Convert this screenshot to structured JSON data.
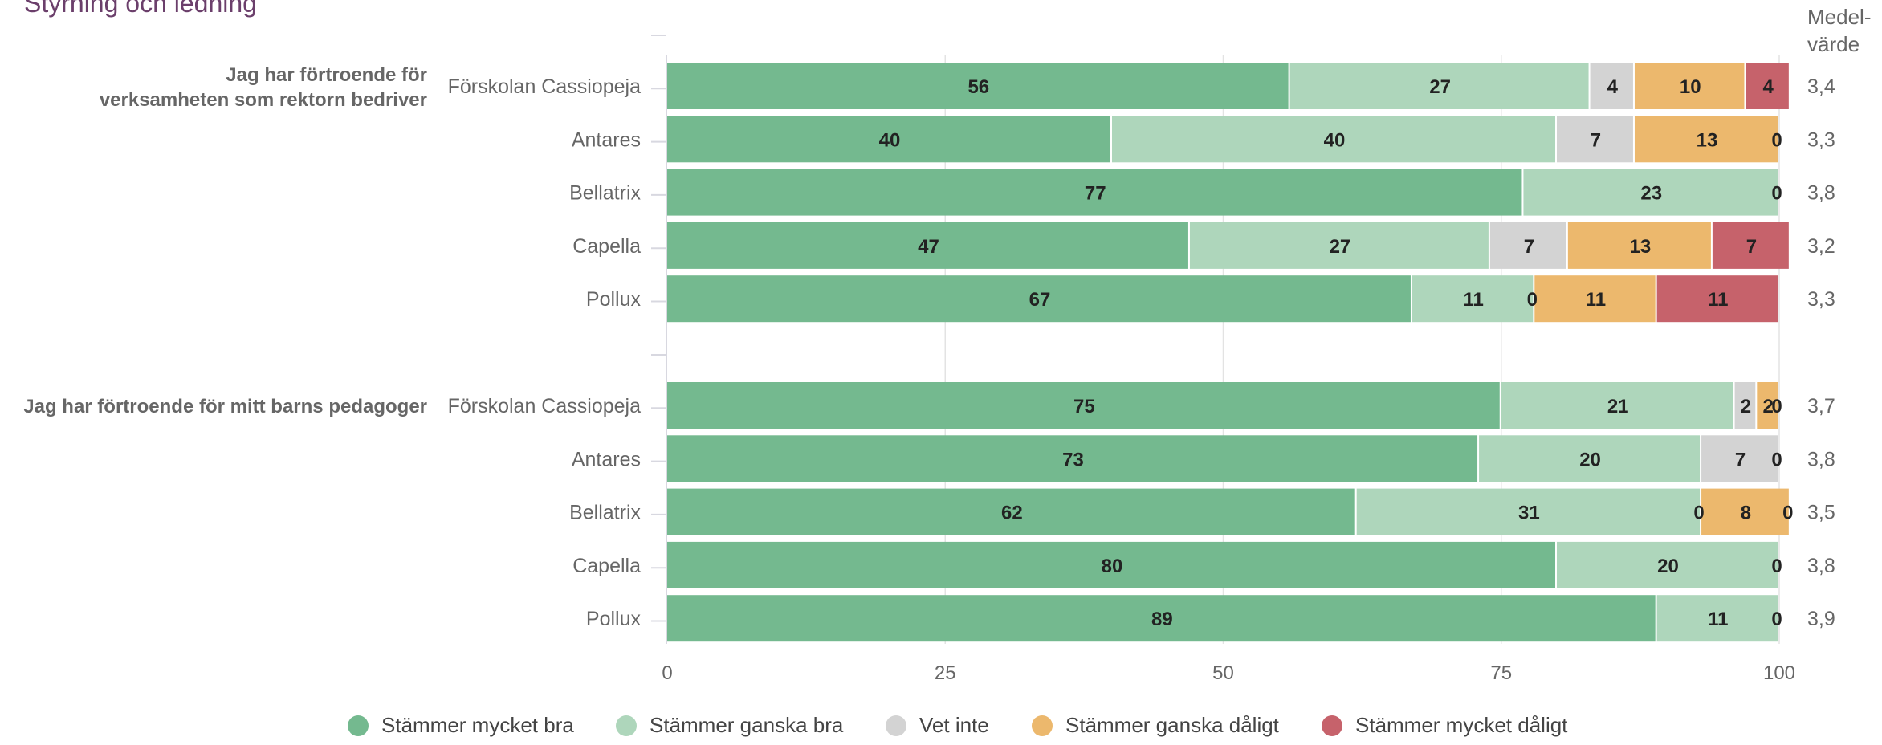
{
  "page": {
    "title": "Styrning och ledning",
    "mean_header_line1": "Medel-",
    "mean_header_line2": "värde"
  },
  "legend": [
    {
      "label": "Stämmer mycket bra",
      "color": "#74b98f"
    },
    {
      "label": "Stämmer ganska bra",
      "color": "#aed6bb"
    },
    {
      "label": "Vet inte",
      "color": "#d3d3d3"
    },
    {
      "label": "Stämmer ganska dåligt",
      "color": "#ecb86d"
    },
    {
      "label": "Stämmer mycket dåligt",
      "color": "#c6626b"
    }
  ],
  "chart_data": {
    "type": "bar",
    "orientation": "horizontal",
    "stacked": true,
    "xlim": [
      0,
      100
    ],
    "xticks": [
      0,
      25,
      50,
      75,
      100
    ],
    "grid": true,
    "legend_position": "bottom",
    "series_names": [
      "Stämmer mycket bra",
      "Stämmer ganska bra",
      "Vet inte",
      "Stämmer ganska dåligt",
      "Stämmer mycket dåligt"
    ],
    "groups": [
      {
        "question": [
          "Jag har förtroende för",
          "verksamheten som rektorn bedriver"
        ],
        "rows": [
          {
            "label": "Förskolan Cassiopeja",
            "values": [
              56,
              27,
              4,
              10,
              4
            ],
            "mean": "3,4"
          },
          {
            "label": "Antares",
            "values": [
              40,
              40,
              7,
              13,
              0
            ],
            "mean": "3,3"
          },
          {
            "label": "Bellatrix",
            "values": [
              77,
              23,
              0,
              0,
              0
            ],
            "mean": "3,8"
          },
          {
            "label": "Capella",
            "values": [
              47,
              27,
              7,
              13,
              7
            ],
            "mean": "3,2"
          },
          {
            "label": "Pollux",
            "values": [
              67,
              11,
              0,
              11,
              11
            ],
            "mean": "3,3"
          }
        ]
      },
      {
        "question": [
          "Jag har förtroende för mitt barns pedagoger"
        ],
        "rows": [
          {
            "label": "Förskolan Cassiopeja",
            "values": [
              75,
              21,
              2,
              2,
              0
            ],
            "mean": "3,7"
          },
          {
            "label": "Antares",
            "values": [
              73,
              20,
              7,
              0,
              0
            ],
            "mean": "3,8"
          },
          {
            "label": "Bellatrix",
            "values": [
              62,
              31,
              0,
              8,
              0
            ],
            "mean": "3,5"
          },
          {
            "label": "Capella",
            "values": [
              80,
              20,
              0,
              0,
              0
            ],
            "mean": "3,8"
          },
          {
            "label": "Pollux",
            "values": [
              89,
              11,
              0,
              0,
              0
            ],
            "mean": "3,9"
          }
        ]
      }
    ]
  }
}
